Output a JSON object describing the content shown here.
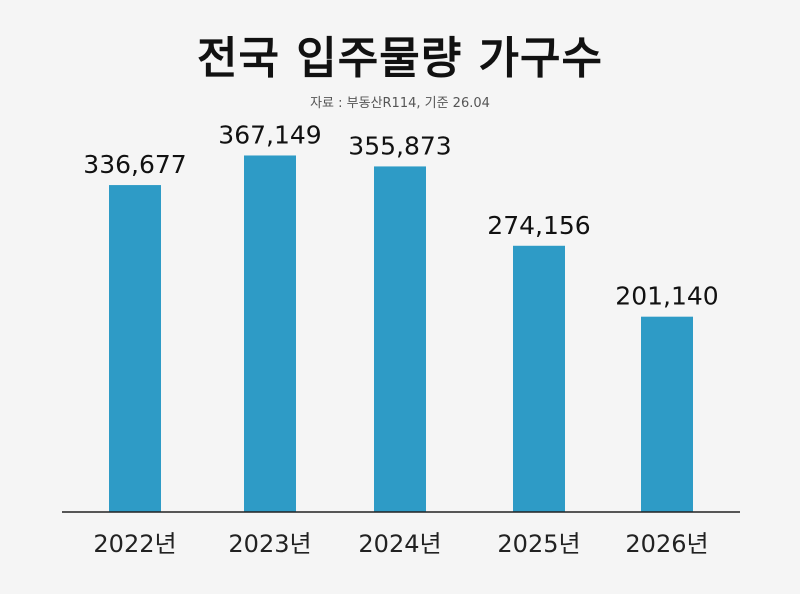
{
  "chart_data": {
    "type": "bar",
    "title": "전국 입주물량 가구수",
    "subtitle": "자료 : 부동산R114, 기준 26.04",
    "categories": [
      "2022년",
      "2023년",
      "2024년",
      "2025년",
      "2026년"
    ],
    "values": [
      336677,
      367149,
      355873,
      274156,
      201140
    ],
    "value_labels": [
      "336,677",
      "367,149",
      "355,873",
      "274,156",
      "201,140"
    ],
    "ylim": [
      0,
      380000
    ],
    "grid": false,
    "bar_color": "#2e9bc6",
    "axis_color": "#222222"
  }
}
